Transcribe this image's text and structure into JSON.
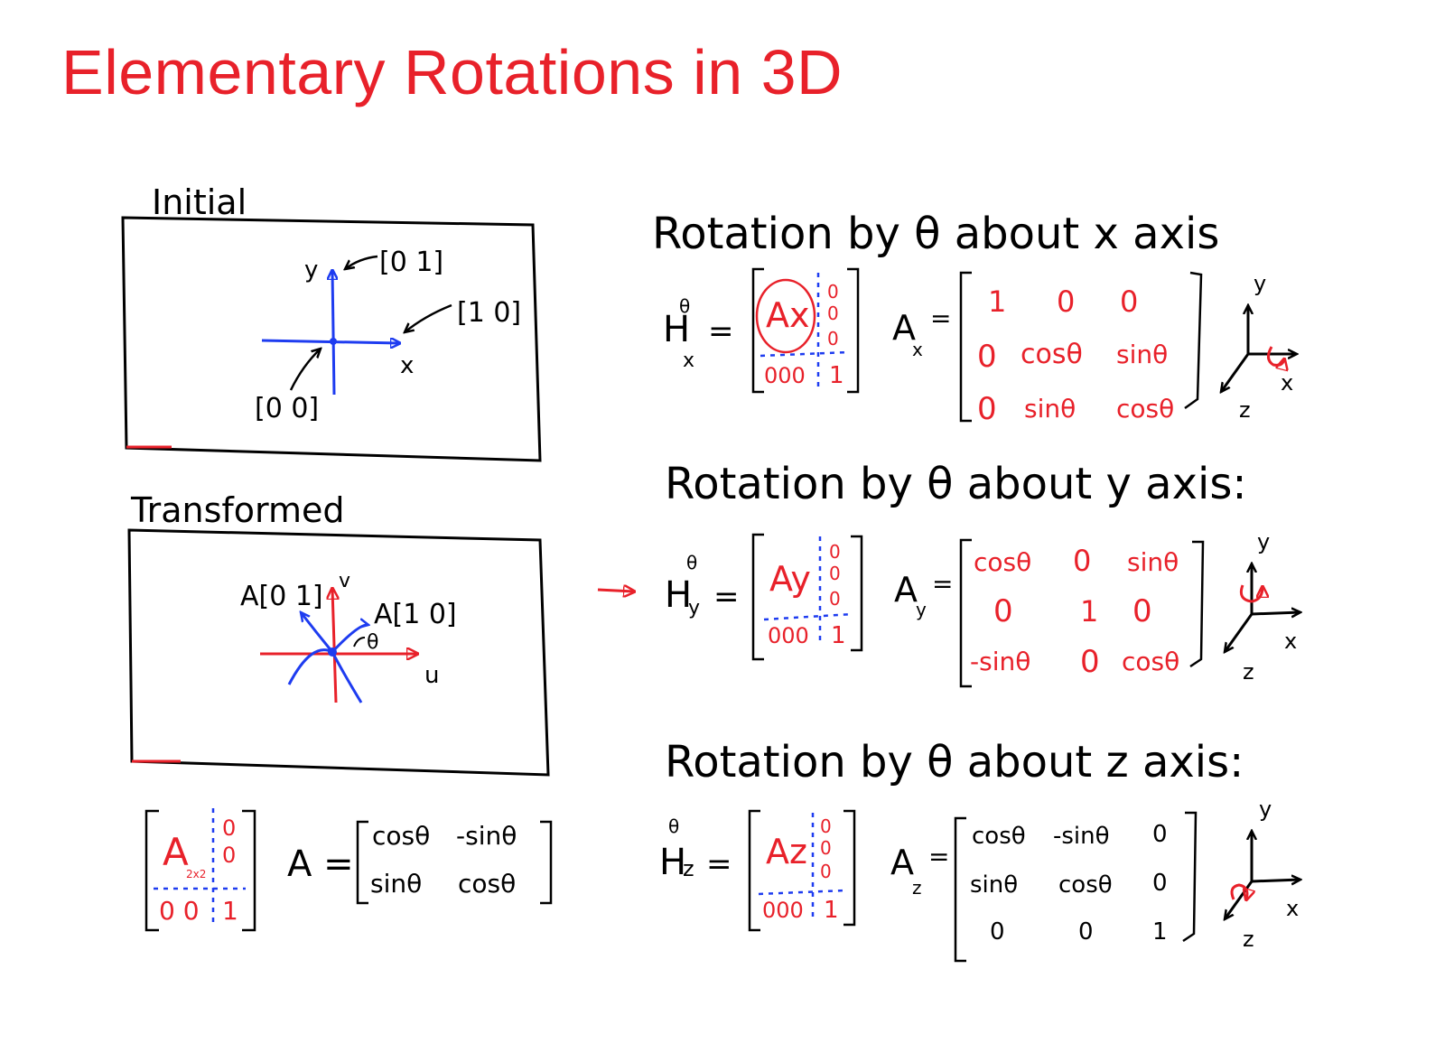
{
  "title": "Elementary Rotations in 3D",
  "colors": {
    "title": "#e8212a",
    "ink": "#000000",
    "red_ink": "#e8212a",
    "blue_ink": "#1e3cf0"
  },
  "initial": {
    "label": "Initial",
    "axis_y": "y",
    "axis_x": "x",
    "vec_y": "[0 1]",
    "vec_x": "[1 0]",
    "vec_origin": "[0 0]"
  },
  "transformed": {
    "label": "Transformed",
    "axis_v": "v",
    "axis_u": "u",
    "vec_a01": "A[0 1]",
    "vec_a10": "A[1 0]",
    "angle": "θ"
  },
  "two_d": {
    "block_a": "A",
    "block_sub": "2x2",
    "col": [
      "0",
      "0"
    ],
    "row": "0 0",
    "one": "1",
    "a_label": "A =",
    "matrix": [
      [
        "cosθ",
        "-sinθ"
      ],
      [
        "sinθ",
        "cosθ"
      ]
    ]
  },
  "rot_x": {
    "heading": "Rotation by θ about x axis",
    "h_label": "H",
    "h_sub": "x",
    "h_sup": "θ",
    "block_a": "Ax",
    "col": [
      "0",
      "0",
      "0"
    ],
    "row": "000",
    "one": "1",
    "a_label": "A",
    "a_sub": "x",
    "matrix": [
      [
        "1",
        "0",
        "0"
      ],
      [
        "0",
        "cosθ",
        "sinθ"
      ],
      [
        "0",
        "sinθ",
        "cosθ"
      ]
    ],
    "axes": [
      "y",
      "x",
      "z"
    ]
  },
  "rot_y": {
    "heading": "Rotation by θ about y axis:",
    "h_label": "H",
    "h_sub": "y",
    "h_sup": "θ",
    "block_a": "Ay",
    "col": [
      "0",
      "0",
      "0"
    ],
    "row": "000",
    "one": "1",
    "a_label": "A",
    "a_sub": "y",
    "matrix": [
      [
        "cosθ",
        "0",
        "sinθ"
      ],
      [
        "0",
        "1",
        "0"
      ],
      [
        "-sinθ",
        "0",
        "cosθ"
      ]
    ],
    "axes": [
      "y",
      "x",
      "z"
    ]
  },
  "rot_z": {
    "heading": "Rotation by θ about z axis:",
    "h_label": "H",
    "h_sub": "z",
    "h_sup": "θ",
    "block_a": "Az",
    "col": [
      "0",
      "0",
      "0"
    ],
    "row": "000",
    "one": "1",
    "a_label": "A",
    "a_sub": "z",
    "matrix": [
      [
        "cosθ",
        "-sinθ",
        "0"
      ],
      [
        "sinθ",
        "cosθ",
        "0"
      ],
      [
        "0",
        "0",
        "1"
      ]
    ],
    "axes": [
      "y",
      "x",
      "z"
    ]
  }
}
